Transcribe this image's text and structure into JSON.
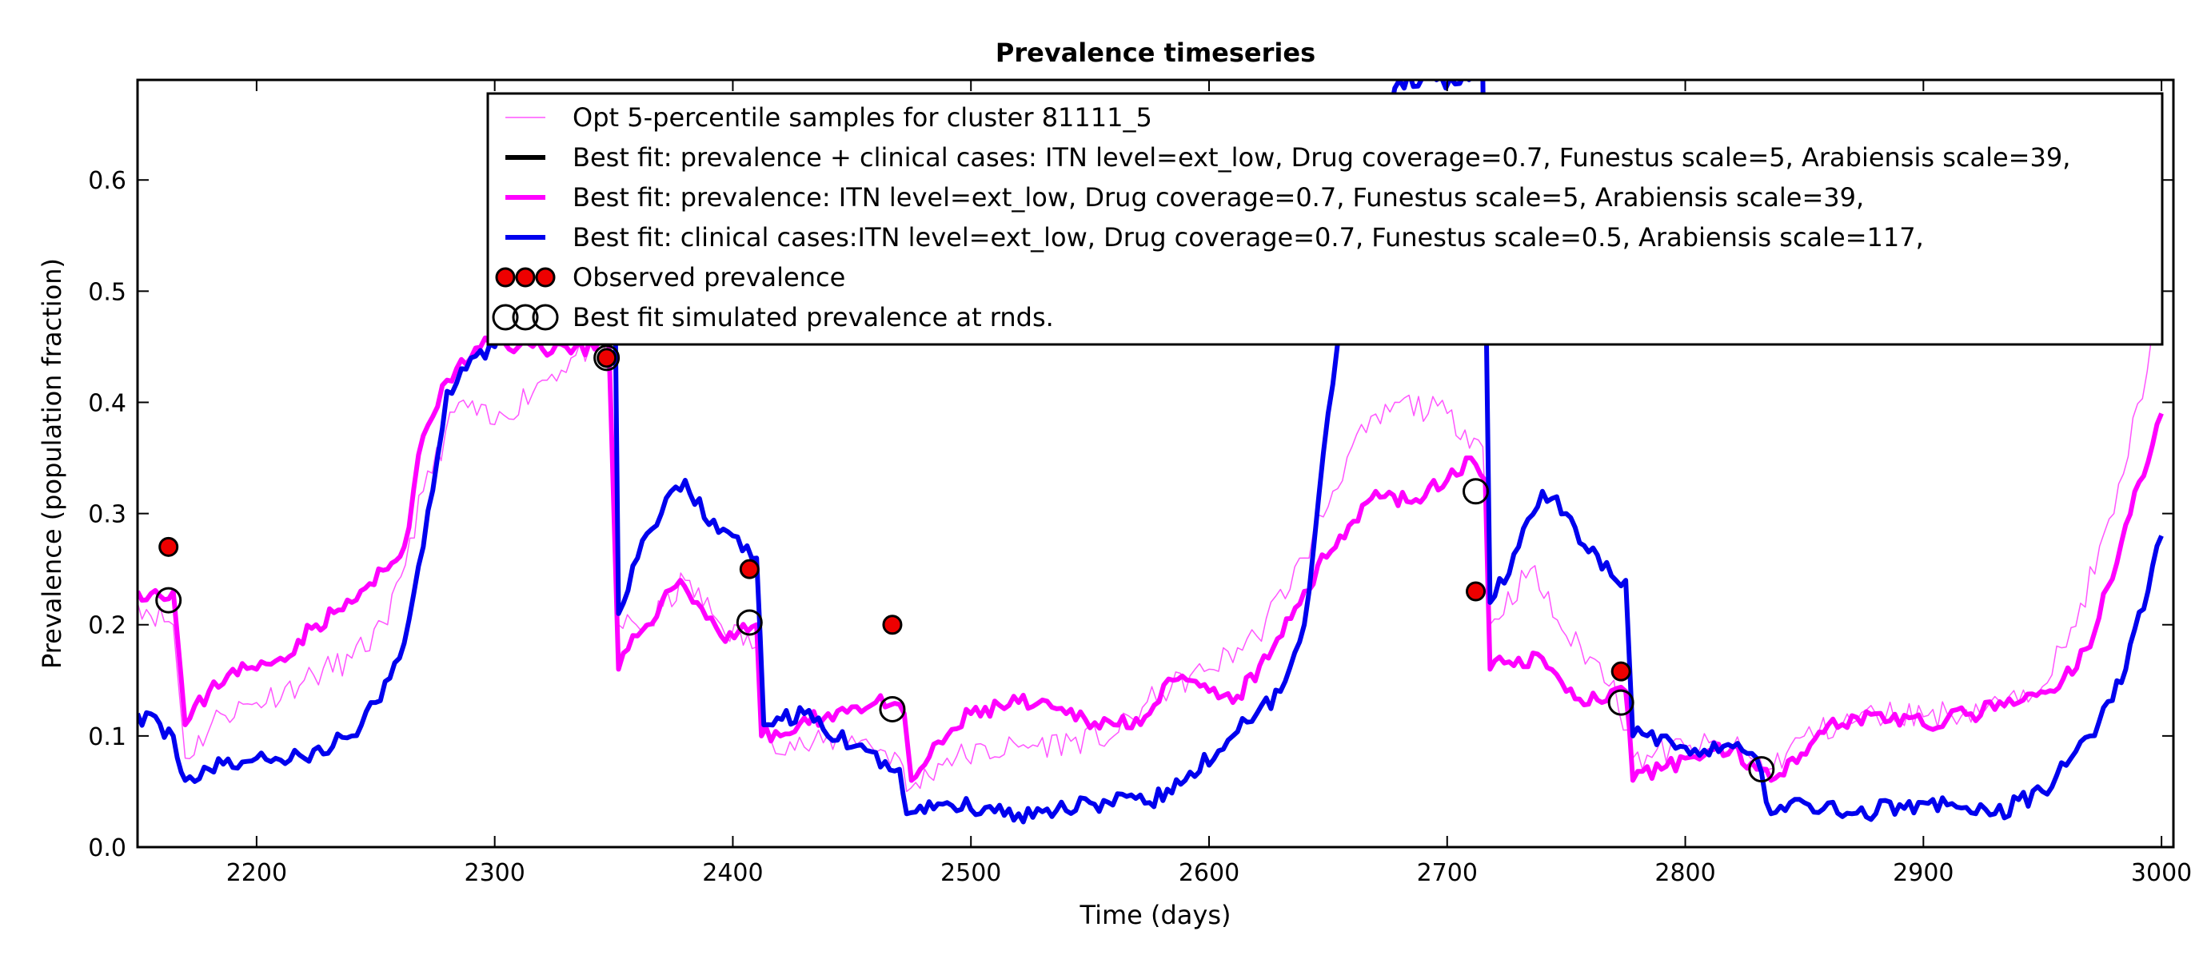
{
  "chart_data": {
    "type": "line",
    "title": "Prevalence timeseries",
    "xlabel": "Time (days)",
    "ylabel": "Prevalence (population fraction)",
    "xlim": [
      2150,
      3005
    ],
    "ylim": [
      0.0,
      0.69
    ],
    "xticks": [
      2200,
      2300,
      2400,
      2500,
      2600,
      2700,
      2800,
      2900,
      3000
    ],
    "yticks": [
      0.0,
      0.1,
      0.2,
      0.3,
      0.4,
      0.5,
      0.6
    ],
    "grid": false,
    "legend_position": "top-right",
    "series": [
      {
        "name": "Opt 5-percentile samples for cluster 81111_5",
        "color": "#ff55ff",
        "points": [
          [
            2150,
            0.22
          ],
          [
            2165,
            0.2
          ],
          [
            2170,
            0.08
          ],
          [
            2185,
            0.12
          ],
          [
            2200,
            0.13
          ],
          [
            2220,
            0.15
          ],
          [
            2240,
            0.17
          ],
          [
            2255,
            0.2
          ],
          [
            2270,
            0.32
          ],
          [
            2285,
            0.4
          ],
          [
            2300,
            0.38
          ],
          [
            2320,
            0.42
          ],
          [
            2340,
            0.45
          ],
          [
            2348,
            0.44
          ],
          [
            2352,
            0.2
          ],
          [
            2365,
            0.2
          ],
          [
            2380,
            0.24
          ],
          [
            2395,
            0.2
          ],
          [
            2410,
            0.18
          ],
          [
            2412,
            0.1
          ],
          [
            2430,
            0.09
          ],
          [
            2450,
            0.1
          ],
          [
            2470,
            0.08
          ],
          [
            2473,
            0.05
          ],
          [
            2490,
            0.08
          ],
          [
            2520,
            0.09
          ],
          [
            2560,
            0.1
          ],
          [
            2580,
            0.14
          ],
          [
            2600,
            0.16
          ],
          [
            2620,
            0.19
          ],
          [
            2640,
            0.26
          ],
          [
            2660,
            0.36
          ],
          [
            2680,
            0.4
          ],
          [
            2700,
            0.39
          ],
          [
            2715,
            0.36
          ],
          [
            2718,
            0.2
          ],
          [
            2735,
            0.25
          ],
          [
            2750,
            0.19
          ],
          [
            2770,
            0.15
          ],
          [
            2778,
            0.08
          ],
          [
            2800,
            0.09
          ],
          [
            2820,
            0.09
          ],
          [
            2835,
            0.07
          ],
          [
            2850,
            0.1
          ],
          [
            2880,
            0.12
          ],
          [
            2910,
            0.12
          ],
          [
            2940,
            0.13
          ],
          [
            2960,
            0.18
          ],
          [
            2980,
            0.3
          ],
          [
            3000,
            0.49
          ]
        ]
      },
      {
        "name": "Best fit: prevalence + clinical cases: ITN level=ext_low, Drug coverage=0.7, Funestus scale=5, Arabiensis scale=39,",
        "color": "#000000",
        "points": []
      },
      {
        "name": "Best fit: prevalence: ITN level=ext_low, Drug coverage=0.7, Funestus scale=5, Arabiensis scale=39,",
        "color": "#ff00ff",
        "points": [
          [
            2150,
            0.23
          ],
          [
            2165,
            0.23
          ],
          [
            2170,
            0.11
          ],
          [
            2180,
            0.14
          ],
          [
            2190,
            0.16
          ],
          [
            2200,
            0.16
          ],
          [
            2210,
            0.17
          ],
          [
            2225,
            0.2
          ],
          [
            2240,
            0.22
          ],
          [
            2255,
            0.25
          ],
          [
            2262,
            0.27
          ],
          [
            2270,
            0.37
          ],
          [
            2280,
            0.42
          ],
          [
            2290,
            0.44
          ],
          [
            2300,
            0.46
          ],
          [
            2310,
            0.45
          ],
          [
            2330,
            0.45
          ],
          [
            2348,
            0.45
          ],
          [
            2352,
            0.16
          ],
          [
            2360,
            0.19
          ],
          [
            2370,
            0.22
          ],
          [
            2378,
            0.24
          ],
          [
            2385,
            0.22
          ],
          [
            2395,
            0.19
          ],
          [
            2410,
            0.2
          ],
          [
            2412,
            0.1
          ],
          [
            2420,
            0.1
          ],
          [
            2440,
            0.12
          ],
          [
            2460,
            0.13
          ],
          [
            2472,
            0.12
          ],
          [
            2475,
            0.06
          ],
          [
            2490,
            0.1
          ],
          [
            2500,
            0.12
          ],
          [
            2520,
            0.13
          ],
          [
            2540,
            0.12
          ],
          [
            2560,
            0.11
          ],
          [
            2575,
            0.12
          ],
          [
            2585,
            0.15
          ],
          [
            2600,
            0.14
          ],
          [
            2610,
            0.13
          ],
          [
            2625,
            0.17
          ],
          [
            2640,
            0.23
          ],
          [
            2655,
            0.28
          ],
          [
            2670,
            0.32
          ],
          [
            2685,
            0.31
          ],
          [
            2700,
            0.33
          ],
          [
            2710,
            0.35
          ],
          [
            2716,
            0.33
          ],
          [
            2718,
            0.16
          ],
          [
            2730,
            0.17
          ],
          [
            2740,
            0.17
          ],
          [
            2750,
            0.14
          ],
          [
            2765,
            0.13
          ],
          [
            2775,
            0.14
          ],
          [
            2778,
            0.06
          ],
          [
            2790,
            0.07
          ],
          [
            2800,
            0.08
          ],
          [
            2820,
            0.09
          ],
          [
            2830,
            0.07
          ],
          [
            2836,
            0.06
          ],
          [
            2845,
            0.08
          ],
          [
            2860,
            0.11
          ],
          [
            2880,
            0.12
          ],
          [
            2900,
            0.11
          ],
          [
            2920,
            0.12
          ],
          [
            2940,
            0.13
          ],
          [
            2955,
            0.14
          ],
          [
            2970,
            0.18
          ],
          [
            2985,
            0.29
          ],
          [
            3000,
            0.39
          ]
        ]
      },
      {
        "name": "Best fit: clinical cases:ITN level=ext_low, Drug coverage=0.7, Funestus scale=0.5, Arabiensis scale=117,",
        "color": "#0000ee",
        "points": [
          [
            2150,
            0.12
          ],
          [
            2165,
            0.1
          ],
          [
            2170,
            0.06
          ],
          [
            2180,
            0.07
          ],
          [
            2200,
            0.08
          ],
          [
            2220,
            0.08
          ],
          [
            2240,
            0.1
          ],
          [
            2250,
            0.13
          ],
          [
            2260,
            0.17
          ],
          [
            2270,
            0.27
          ],
          [
            2280,
            0.41
          ],
          [
            2290,
            0.44
          ],
          [
            2300,
            0.45
          ],
          [
            2310,
            0.5
          ],
          [
            2320,
            0.6
          ],
          [
            2340,
            0.6
          ],
          [
            2350,
            0.6
          ],
          [
            2352,
            0.21
          ],
          [
            2360,
            0.26
          ],
          [
            2370,
            0.3
          ],
          [
            2380,
            0.33
          ],
          [
            2390,
            0.29
          ],
          [
            2400,
            0.28
          ],
          [
            2410,
            0.26
          ],
          [
            2413,
            0.11
          ],
          [
            2430,
            0.12
          ],
          [
            2450,
            0.09
          ],
          [
            2470,
            0.07
          ],
          [
            2473,
            0.03
          ],
          [
            2490,
            0.04
          ],
          [
            2520,
            0.03
          ],
          [
            2550,
            0.04
          ],
          [
            2575,
            0.04
          ],
          [
            2590,
            0.06
          ],
          [
            2610,
            0.1
          ],
          [
            2630,
            0.14
          ],
          [
            2640,
            0.2
          ],
          [
            2650,
            0.39
          ],
          [
            2660,
            0.55
          ],
          [
            2680,
            0.69
          ],
          [
            2715,
            0.69
          ],
          [
            2718,
            0.22
          ],
          [
            2730,
            0.27
          ],
          [
            2740,
            0.32
          ],
          [
            2750,
            0.3
          ],
          [
            2765,
            0.25
          ],
          [
            2775,
            0.24
          ],
          [
            2778,
            0.1
          ],
          [
            2790,
            0.1
          ],
          [
            2800,
            0.09
          ],
          [
            2820,
            0.09
          ],
          [
            2830,
            0.08
          ],
          [
            2836,
            0.03
          ],
          [
            2850,
            0.04
          ],
          [
            2870,
            0.03
          ],
          [
            2900,
            0.04
          ],
          [
            2930,
            0.03
          ],
          [
            2950,
            0.05
          ],
          [
            2970,
            0.1
          ],
          [
            2985,
            0.16
          ],
          [
            3000,
            0.28
          ]
        ]
      }
    ],
    "observed": {
      "name": "Observed prevalence",
      "color": "#ee0000",
      "points": [
        [
          2163,
          0.27
        ],
        [
          2347,
          0.44
        ],
        [
          2407,
          0.25
        ],
        [
          2467,
          0.2
        ],
        [
          2712,
          0.23
        ],
        [
          2773,
          0.158
        ]
      ]
    },
    "simulated_at_rounds": {
      "name": "Best fit simulated prevalence at rnds.",
      "points": [
        [
          2163,
          0.222
        ],
        [
          2347,
          0.44
        ],
        [
          2407,
          0.202
        ],
        [
          2467,
          0.124
        ],
        [
          2712,
          0.32
        ],
        [
          2773,
          0.13
        ],
        [
          2832,
          0.07
        ]
      ]
    }
  }
}
